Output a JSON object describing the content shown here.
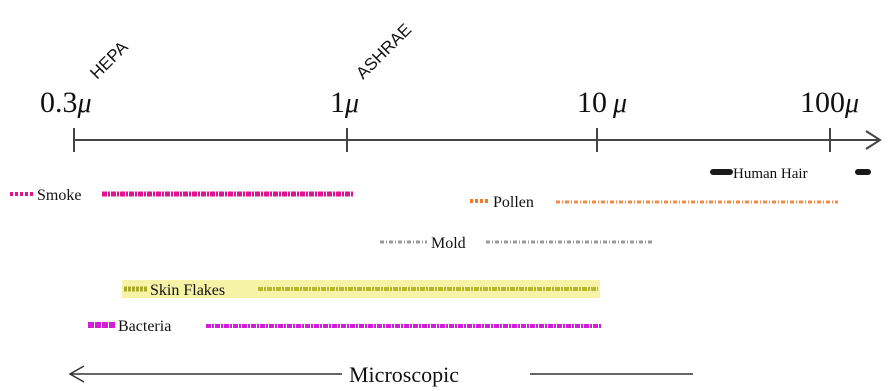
{
  "filters": [
    {
      "label": "HEPA"
    },
    {
      "label": "ASHRAE"
    }
  ],
  "scale": {
    "ticks": [
      {
        "number": "0.3",
        "unit": "μ"
      },
      {
        "number": "1",
        "unit": "μ"
      },
      {
        "number": "10",
        "unit": "μ"
      },
      {
        "number": "100",
        "unit": "μ"
      }
    ]
  },
  "particles": [
    {
      "name": "Human Hair",
      "color": "#1a1a1a"
    },
    {
      "name": "Smoke",
      "color": "#e0148c"
    },
    {
      "name": "Pollen",
      "color": "#f07a2a"
    },
    {
      "name": "Mold",
      "color": "#9a9a9a"
    },
    {
      "name": "Skin Flakes",
      "color": "#c8c832",
      "highlight": "#f6f3a6"
    },
    {
      "name": "Bacteria",
      "color": "#d020d8"
    }
  ],
  "footer": {
    "label": "Microscopic"
  }
}
